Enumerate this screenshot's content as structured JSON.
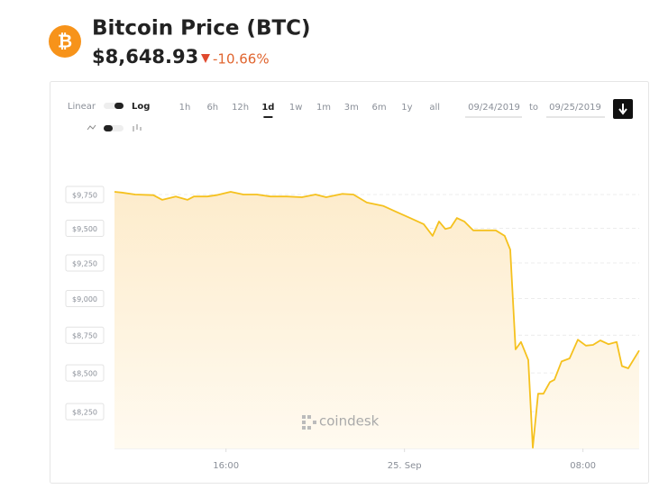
{
  "header": {
    "title": "Bitcoin Price (BTC)",
    "price": "$8,648.93",
    "change": "-10.66%"
  },
  "controls": {
    "scale_left": "Linear",
    "scale_right": "Log",
    "ranges": [
      "1h",
      "6h",
      "12h",
      "1d",
      "1w",
      "1m",
      "3m",
      "6m",
      "1y",
      "all"
    ],
    "selected_range": 3,
    "date_from": "09/24/2019",
    "date_sep": "to",
    "date_to": "09/25/2019"
  },
  "watermark": "coindesk",
  "chart_data": {
    "type": "line",
    "color": "#f5c11e",
    "log_scale": true,
    "grid": true,
    "x": [
      0,
      0.32,
      0.93,
      1.74,
      2.14,
      2.75,
      3.27,
      3.56,
      4.16,
      4.57,
      5.21,
      5.78,
      6.38,
      6.99,
      7.72,
      8.4,
      9.01,
      9.49,
      10.22,
      10.71,
      11.31,
      12.04,
      12.65,
      13.25,
      13.86,
      14.26,
      14.55,
      14.83,
      15.07,
      15.35,
      15.68,
      16.08,
      16.69,
      17.09,
      17.49,
      17.74,
      17.98,
      18.22,
      18.55,
      18.75,
      18.99,
      19.23,
      19.52,
      19.72,
      20.04,
      20.4,
      20.77,
      21.13,
      21.45,
      21.78,
      22.14,
      22.51,
      22.75,
      23.03,
      23.52
    ],
    "values": [
      9770,
      9765,
      9750,
      9745,
      9710,
      9735,
      9710,
      9735,
      9735,
      9745,
      9770,
      9750,
      9750,
      9735,
      9735,
      9730,
      9750,
      9730,
      9755,
      9750,
      9690,
      9665,
      9620,
      9575,
      9530,
      9445,
      9550,
      9495,
      9505,
      9575,
      9550,
      9485,
      9485,
      9485,
      9445,
      9345,
      8655,
      8705,
      8585,
      8025,
      8365,
      8365,
      8440,
      8455,
      8575,
      8595,
      8720,
      8680,
      8685,
      8715,
      8690,
      8705,
      8545,
      8530,
      8648
    ],
    "xlim": [
      0,
      23.52
    ],
    "xticks": [
      {
        "value": 5,
        "label": "16:00"
      },
      {
        "value": 13,
        "label": "25. Sep"
      },
      {
        "value": 21,
        "label": "08:00"
      }
    ],
    "ylim": [
      8020,
      10010
    ],
    "yticks": [
      {
        "value": 8250,
        "label": "$8,250"
      },
      {
        "value": 8500,
        "label": "$8,500"
      },
      {
        "value": 8750,
        "label": "$8,750"
      },
      {
        "value": 9000,
        "label": "$9,000"
      },
      {
        "value": 9250,
        "label": "$9,250"
      },
      {
        "value": 9500,
        "label": "$9,500"
      },
      {
        "value": 9750,
        "label": "$9,750"
      }
    ]
  }
}
